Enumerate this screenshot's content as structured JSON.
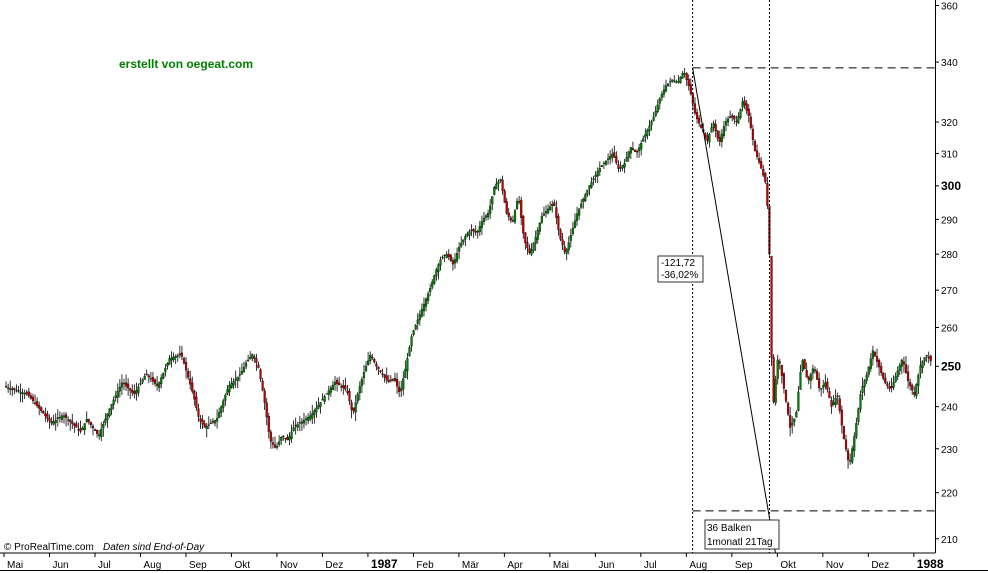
{
  "watermark": "erstellt von oegeat.com",
  "footer": {
    "copyright": "© ProRealTime.com",
    "data_note": "Daten sind End-of-Day"
  },
  "annotations": {
    "change_abs": "-121,72",
    "change_pct": "-36,02%",
    "bars": "36 Balken",
    "duration": "1monatl 21Tag"
  },
  "colors": {
    "up": "#008000",
    "down": "#c00000",
    "wick": "#000000",
    "watermark": "#008000"
  },
  "chart_data": {
    "type": "candlestick",
    "title": "",
    "xlabel": "",
    "ylabel": "",
    "ylim": [
      207,
      362
    ],
    "y_scale": "log",
    "y_ticks": [
      {
        "value": 210,
        "label": "210",
        "bold": false
      },
      {
        "value": 220,
        "label": "220",
        "bold": false
      },
      {
        "value": 230,
        "label": "230",
        "bold": false
      },
      {
        "value": 240,
        "label": "240",
        "bold": false
      },
      {
        "value": 250,
        "label": "250",
        "bold": true
      },
      {
        "value": 260,
        "label": "260",
        "bold": false
      },
      {
        "value": 270,
        "label": "270",
        "bold": false
      },
      {
        "value": 280,
        "label": "280",
        "bold": false
      },
      {
        "value": 290,
        "label": "290",
        "bold": false
      },
      {
        "value": 300,
        "label": "300",
        "bold": true
      },
      {
        "value": 310,
        "label": "310",
        "bold": false
      },
      {
        "value": 320,
        "label": "320",
        "bold": false
      },
      {
        "value": 340,
        "label": "340",
        "bold": false
      },
      {
        "value": 360,
        "label": "360",
        "bold": false
      }
    ],
    "x_ticks": [
      {
        "label": "Mai",
        "bold": false
      },
      {
        "label": "Jun",
        "bold": false
      },
      {
        "label": "Jul",
        "bold": false
      },
      {
        "label": "Aug",
        "bold": false
      },
      {
        "label": "Sep",
        "bold": false
      },
      {
        "label": "Okt",
        "bold": false
      },
      {
        "label": "Nov",
        "bold": false
      },
      {
        "label": "Dez",
        "bold": false
      },
      {
        "label": "1987",
        "bold": true
      },
      {
        "label": "Feb",
        "bold": false
      },
      {
        "label": "Mär",
        "bold": false
      },
      {
        "label": "Apr",
        "bold": false
      },
      {
        "label": "Mai",
        "bold": false
      },
      {
        "label": "Jun",
        "bold": false
      },
      {
        "label": "Jul",
        "bold": false
      },
      {
        "label": "Aug",
        "bold": false
      },
      {
        "label": "Sep",
        "bold": false
      },
      {
        "label": "Okt",
        "bold": false
      },
      {
        "label": "Nov",
        "bold": false
      },
      {
        "label": "Dez",
        "bold": false
      },
      {
        "label": "1988",
        "bold": true
      }
    ],
    "close_path": [
      [
        0,
        245
      ],
      [
        4,
        243
      ],
      [
        8,
        236
      ],
      [
        10,
        238
      ],
      [
        13,
        234
      ],
      [
        14,
        237
      ],
      [
        16,
        233
      ],
      [
        18,
        240
      ],
      [
        20,
        246
      ],
      [
        22,
        243
      ],
      [
        24,
        248
      ],
      [
        26,
        245
      ],
      [
        28,
        252
      ],
      [
        30,
        253
      ],
      [
        32,
        243
      ],
      [
        33,
        237
      ],
      [
        34,
        235
      ],
      [
        35,
        236
      ],
      [
        36,
        237
      ],
      [
        38,
        245
      ],
      [
        40,
        248
      ],
      [
        41,
        251
      ],
      [
        42,
        253
      ],
      [
        43,
        250
      ],
      [
        44,
        242
      ],
      [
        45,
        232
      ],
      [
        46,
        230
      ],
      [
        47,
        233
      ],
      [
        48,
        232
      ],
      [
        49,
        235
      ],
      [
        50,
        236
      ],
      [
        52,
        238
      ],
      [
        54,
        242
      ],
      [
        56,
        246
      ],
      [
        57,
        245
      ],
      [
        58,
        244
      ],
      [
        59,
        238
      ],
      [
        60,
        244
      ],
      [
        61,
        249
      ],
      [
        62,
        253
      ],
      [
        63,
        250
      ],
      [
        64,
        248
      ],
      [
        65,
        246
      ],
      [
        66,
        247
      ],
      [
        67,
        243
      ],
      [
        68,
        250
      ],
      [
        69,
        258
      ],
      [
        70,
        262
      ],
      [
        71,
        266
      ],
      [
        72,
        270
      ],
      [
        73,
        275
      ],
      [
        74,
        279
      ],
      [
        75,
        280
      ],
      [
        76,
        277
      ],
      [
        77,
        282
      ],
      [
        78,
        285
      ],
      [
        79,
        287
      ],
      [
        80,
        286
      ],
      [
        81,
        290
      ],
      [
        82,
        292
      ],
      [
        83,
        300
      ],
      [
        84,
        302
      ],
      [
        85,
        292
      ],
      [
        86,
        289
      ],
      [
        87,
        297
      ],
      [
        88,
        284
      ],
      [
        89,
        280
      ],
      [
        90,
        285
      ],
      [
        91,
        291
      ],
      [
        92,
        293
      ],
      [
        93,
        295
      ],
      [
        94,
        285
      ],
      [
        95,
        280
      ],
      [
        96,
        286
      ],
      [
        97,
        292
      ],
      [
        98,
        296
      ],
      [
        99,
        300
      ],
      [
        100,
        303
      ],
      [
        101,
        306
      ],
      [
        102,
        308
      ],
      [
        103,
        310
      ],
      [
        104,
        305
      ],
      [
        105,
        307
      ],
      [
        106,
        312
      ],
      [
        107,
        310
      ],
      [
        108,
        314
      ],
      [
        109,
        318
      ],
      [
        110,
        322
      ],
      [
        111,
        328
      ],
      [
        112,
        332
      ],
      [
        113,
        334
      ],
      [
        114,
        333
      ],
      [
        115,
        337
      ],
      [
        116,
        331
      ],
      [
        117,
        322
      ],
      [
        118,
        318
      ],
      [
        119,
        314
      ],
      [
        120,
        320
      ],
      [
        121,
        313
      ],
      [
        122,
        320
      ],
      [
        123,
        322
      ],
      [
        124,
        320
      ],
      [
        125,
        327
      ],
      [
        126,
        322
      ],
      [
        127,
        311
      ],
      [
        128,
        306
      ],
      [
        129,
        300
      ],
      [
        129.6,
        276
      ],
      [
        130,
        238
      ],
      [
        130.5,
        246
      ],
      [
        131,
        253
      ],
      [
        132,
        244
      ],
      [
        133,
        235
      ],
      [
        134,
        238
      ],
      [
        135,
        252
      ],
      [
        136,
        246
      ],
      [
        137,
        250
      ],
      [
        138,
        244
      ],
      [
        139,
        246
      ],
      [
        140,
        240
      ],
      [
        141,
        243
      ],
      [
        142,
        233
      ],
      [
        143,
        226
      ],
      [
        144,
        234
      ],
      [
        145,
        244
      ],
      [
        146,
        248
      ],
      [
        147,
        254
      ],
      [
        148,
        250
      ],
      [
        149,
        246
      ],
      [
        150,
        244
      ],
      [
        151,
        248
      ],
      [
        152,
        252
      ],
      [
        153,
        246
      ],
      [
        154,
        243
      ],
      [
        155,
        250
      ],
      [
        156,
        253
      ],
      [
        157,
        251
      ]
    ],
    "peak_level": 338,
    "trough_level": 216,
    "x_markers": [
      116.5,
      129.5
    ]
  }
}
